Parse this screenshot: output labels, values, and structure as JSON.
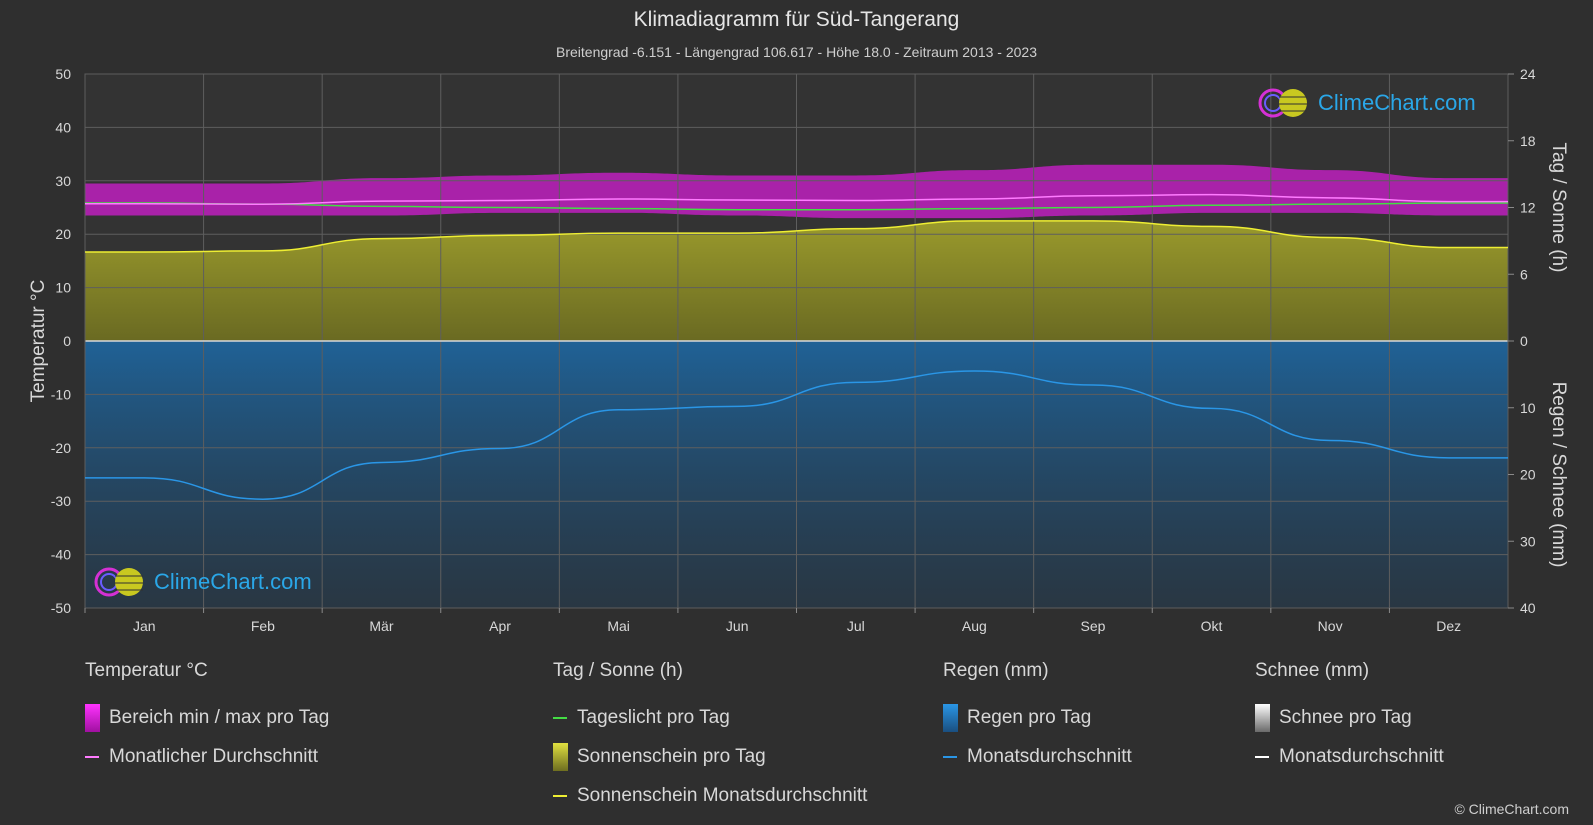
{
  "title": "Klimadiagramm für Süd-Tangerang",
  "subtitle": "Breitengrad -6.151 - Längengrad 106.617 - Höhe 18.0 - Zeitraum 2013 - 2023",
  "logo_text": "ClimeChart.com",
  "copyright": "© ClimeChart.com",
  "colors": {
    "background": "#2f2f2f",
    "temp_range": "#d21ed2",
    "temp_avg": "#ff7bff",
    "daylight": "#44dd44",
    "sunshine_fill": "#8d8d2a",
    "sunshine_avg": "#eeee33",
    "rain_fill": "#1a6fb0",
    "rain_avg": "#2a96e6",
    "snow": "#ffffff"
  },
  "chart_data": {
    "type": "area",
    "title": "Klimadiagramm für Süd-Tangerang",
    "categories": [
      "Jan",
      "Feb",
      "Mär",
      "Apr",
      "Mai",
      "Jun",
      "Jul",
      "Aug",
      "Sep",
      "Okt",
      "Nov",
      "Dez"
    ],
    "left_axis": {
      "label": "Temperatur °C",
      "range": [
        -50,
        50
      ],
      "ticks": [
        "50",
        "40",
        "30",
        "20",
        "10",
        "0",
        "-10",
        "-20",
        "-30",
        "-40",
        "-50"
      ]
    },
    "right_axis_top": {
      "label": "Tag / Sonne (h)",
      "range": [
        0,
        24
      ],
      "ticks": [
        "24",
        "18",
        "12",
        "6",
        "0"
      ]
    },
    "right_axis_bottom": {
      "label": "Regen / Schnee (mm)",
      "range": [
        0,
        40
      ],
      "ticks": [
        "0",
        "10",
        "20",
        "30",
        "40"
      ]
    },
    "grid": true,
    "series": [
      {
        "name": "Bereich min / max pro Tag",
        "kind": "band",
        "axis": "temp",
        "min": [
          23.5,
          23.5,
          23.5,
          24.0,
          24.0,
          23.5,
          23.0,
          23.0,
          23.5,
          24.0,
          24.0,
          23.5
        ],
        "max": [
          29.5,
          29.5,
          30.5,
          31.0,
          31.5,
          31.0,
          31.0,
          32.0,
          33.0,
          33.0,
          32.0,
          30.5
        ]
      },
      {
        "name": "Monatlicher Durchschnitt",
        "kind": "line",
        "axis": "temp",
        "values": [
          25.7,
          25.6,
          26.2,
          26.3,
          26.6,
          26.4,
          26.3,
          26.6,
          27.2,
          27.4,
          26.8,
          26.1
        ]
      },
      {
        "name": "Tageslicht pro Tag",
        "kind": "line",
        "axis": "sun",
        "values": [
          12.4,
          12.3,
          12.1,
          12.0,
          11.9,
          11.8,
          11.8,
          11.9,
          12.0,
          12.2,
          12.3,
          12.4
        ]
      },
      {
        "name": "Sonnenschein pro Tag",
        "kind": "fill",
        "axis": "sun",
        "values": [
          8.0,
          8.1,
          9.2,
          9.5,
          9.7,
          9.7,
          10.1,
          10.8,
          10.8,
          10.3,
          9.3,
          8.4
        ]
      },
      {
        "name": "Sonnenschein Monatsdurchschnitt",
        "kind": "line",
        "axis": "sun",
        "values": [
          8.0,
          8.1,
          9.2,
          9.5,
          9.7,
          9.7,
          10.1,
          10.8,
          10.8,
          10.3,
          9.3,
          8.4
        ]
      },
      {
        "name": "Regen pro Tag",
        "kind": "fill",
        "axis": "rain",
        "values": [
          20.5,
          23.7,
          18.2,
          16.1,
          10.3,
          9.8,
          6.2,
          4.5,
          6.6,
          10.1,
          14.9,
          17.5
        ]
      },
      {
        "name": "Monatsdurchschnitt",
        "kind": "line",
        "axis": "rain",
        "values": [
          20.5,
          23.7,
          18.2,
          16.1,
          10.3,
          9.8,
          6.2,
          4.5,
          6.6,
          10.1,
          14.9,
          17.5
        ]
      },
      {
        "name": "Schnee pro Tag",
        "kind": "fill",
        "axis": "rain",
        "values": [
          0,
          0,
          0,
          0,
          0,
          0,
          0,
          0,
          0,
          0,
          0,
          0
        ]
      },
      {
        "name": "Monatsdurchschnitt",
        "kind": "line",
        "axis": "rain",
        "values": [
          0,
          0,
          0,
          0,
          0,
          0,
          0,
          0,
          0,
          0,
          0,
          0
        ]
      }
    ]
  },
  "legend": {
    "temp": {
      "heading": "Temperatur °C",
      "items": [
        "Bereich min / max pro Tag",
        "Monatlicher Durchschnitt"
      ]
    },
    "sun": {
      "heading": "Tag / Sonne (h)",
      "items": [
        "Tageslicht pro Tag",
        "Sonnenschein pro Tag",
        "Sonnenschein Monatsdurchschnitt"
      ]
    },
    "rain": {
      "heading": "Regen (mm)",
      "items": [
        "Regen pro Tag",
        "Monatsdurchschnitt"
      ]
    },
    "snow": {
      "heading": "Schnee (mm)",
      "items": [
        "Schnee pro Tag",
        "Monatsdurchschnitt"
      ]
    }
  }
}
